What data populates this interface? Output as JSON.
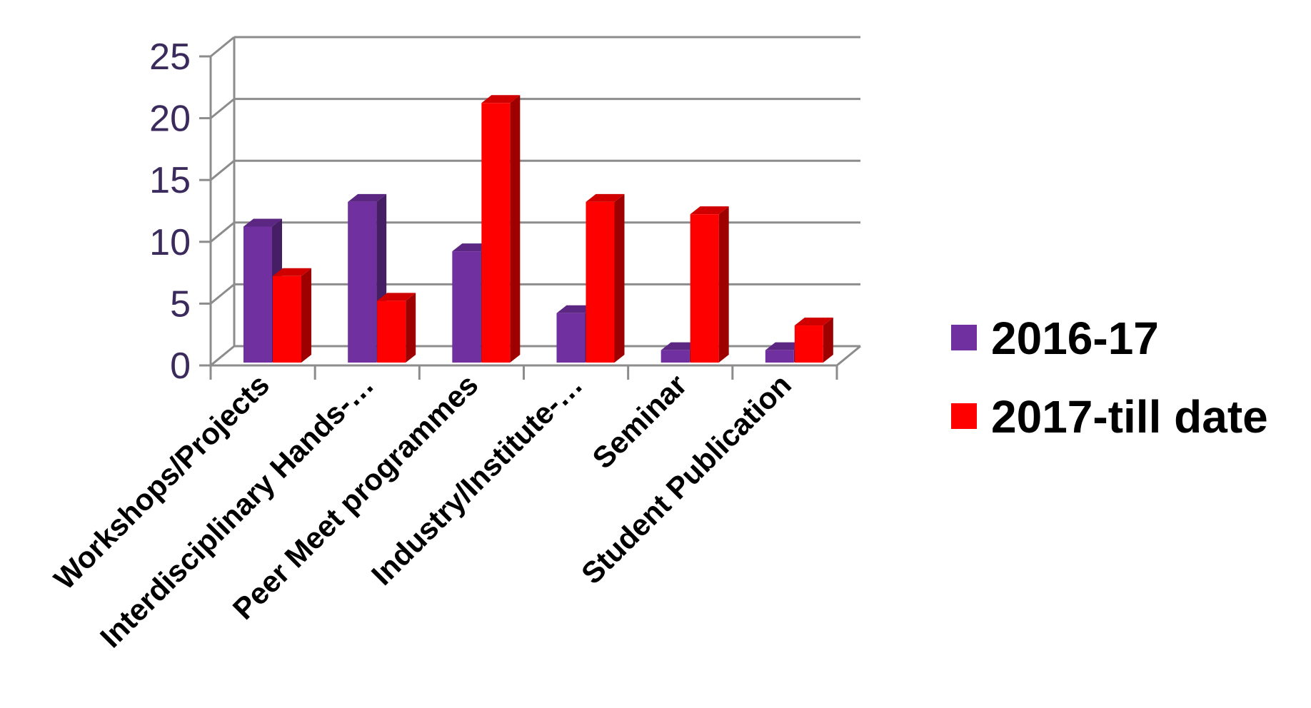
{
  "chart_data": {
    "type": "bar",
    "style": "3d-clustered-column",
    "categories": [
      "Workshops/Projects",
      "Interdisciplinary Hands-…",
      "Peer Meet programmes",
      "Industry/Institute-…",
      "Seminar",
      "Student Publication"
    ],
    "series": [
      {
        "name": "2016-17",
        "values": [
          11,
          13,
          9,
          4,
          1,
          1
        ],
        "color": "#7030a0"
      },
      {
        "name": "2017-till date",
        "values": [
          7,
          5,
          21,
          13,
          12,
          3
        ],
        "color": "#ff0000"
      }
    ],
    "yticks": [
      0,
      5,
      10,
      15,
      20,
      25
    ],
    "ylim": [
      0,
      25
    ],
    "grid": true,
    "legend_position": "right",
    "title": "",
    "xlabel": "",
    "ylabel": ""
  }
}
